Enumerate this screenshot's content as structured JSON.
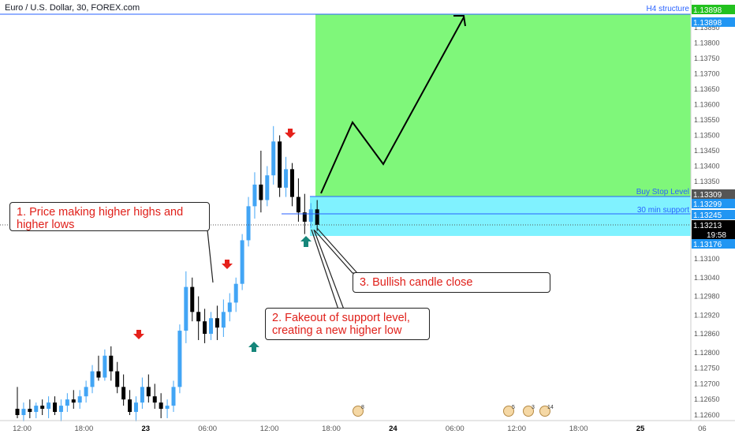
{
  "header": {
    "title": "Euro / U.S. Dollar, 30, FOREX.com"
  },
  "annotations": {
    "a1": "1. Price making higher highs and higher lows",
    "a2": "2. Fakeout of support level, creating a new higher low",
    "a3": "3. Bullish candle close"
  },
  "levels": {
    "h4_structure": "H4 structure",
    "buy_stop": "Buy Stop Level",
    "support_30": "30 min support"
  },
  "price_tags": {
    "top1": "1.13898",
    "top2": "1.13898",
    "buy_stop": "1.13309",
    "blue1": "1.13299",
    "support": "1.13245",
    "current": "1.13213",
    "countdown": "19:58",
    "bottom": "1.13176"
  },
  "event_badges": [
    "8",
    "5",
    "3",
    "14"
  ],
  "colors": {
    "bull": "#42a5f5",
    "bear": "#000000",
    "target_zone": "#7ff77a",
    "entry_zone": "#80f2ff",
    "arrow_down": "#e5211b",
    "arrow_up": "#16867a",
    "text_red": "#e0201a"
  },
  "chart_data": {
    "type": "candlestick",
    "title": "Euro / U.S. Dollar, 30, FOREX.com",
    "y_ticks": [
      1.126,
      1.1265,
      1.127,
      1.1275,
      1.128,
      1.1286,
      1.1292,
      1.1298,
      1.1304,
      1.131,
      1.1335,
      1.134,
      1.1345,
      1.135,
      1.1355,
      1.136,
      1.1365,
      1.137,
      1.1375,
      1.138,
      1.1385
    ],
    "y_tick_labels": [
      "1.12600",
      "1.12650",
      "1.12700",
      "1.12750",
      "1.12800",
      "1.12860",
      "1.12920",
      "1.12980",
      "1.13040",
      "1.13100",
      "1.13350",
      "1.13400",
      "1.13450",
      "1.13500",
      "1.13550",
      "1.13600",
      "1.13650",
      "1.13700",
      "1.13750",
      "1.13800",
      "1.13850"
    ],
    "x_ticks": [
      "12:00",
      "18:00",
      "23",
      "06:00",
      "12:00",
      "18:00",
      "24",
      "06:00",
      "12:00",
      "18:00",
      "25",
      "06"
    ],
    "x_tick_bold": [
      false,
      false,
      true,
      false,
      false,
      false,
      true,
      false,
      false,
      false,
      true,
      false
    ],
    "candles": [
      {
        "o": 1.1262,
        "h": 1.1269,
        "l": 1.1259,
        "c": 1.126
      },
      {
        "o": 1.126,
        "h": 1.1264,
        "l": 1.1258,
        "c": 1.1262
      },
      {
        "o": 1.1262,
        "h": 1.1265,
        "l": 1.1259,
        "c": 1.1261
      },
      {
        "o": 1.1261,
        "h": 1.1264,
        "l": 1.1259,
        "c": 1.1263
      },
      {
        "o": 1.1263,
        "h": 1.1265,
        "l": 1.126,
        "c": 1.1262
      },
      {
        "o": 1.1262,
        "h": 1.1266,
        "l": 1.1259,
        "c": 1.1264
      },
      {
        "o": 1.1264,
        "h": 1.1266,
        "l": 1.126,
        "c": 1.1261
      },
      {
        "o": 1.1261,
        "h": 1.1265,
        "l": 1.1258,
        "c": 1.1263
      },
      {
        "o": 1.1263,
        "h": 1.1267,
        "l": 1.1261,
        "c": 1.1265
      },
      {
        "o": 1.1265,
        "h": 1.1268,
        "l": 1.1262,
        "c": 1.1264
      },
      {
        "o": 1.1264,
        "h": 1.1268,
        "l": 1.1262,
        "c": 1.1266
      },
      {
        "o": 1.1266,
        "h": 1.1271,
        "l": 1.1264,
        "c": 1.1269
      },
      {
        "o": 1.1269,
        "h": 1.1276,
        "l": 1.1267,
        "c": 1.1274
      },
      {
        "o": 1.1274,
        "h": 1.1279,
        "l": 1.1271,
        "c": 1.1272
      },
      {
        "o": 1.1272,
        "h": 1.1281,
        "l": 1.1271,
        "c": 1.1279
      },
      {
        "o": 1.1279,
        "h": 1.1282,
        "l": 1.1271,
        "c": 1.1274
      },
      {
        "o": 1.1274,
        "h": 1.1277,
        "l": 1.1267,
        "c": 1.1269
      },
      {
        "o": 1.1269,
        "h": 1.1273,
        "l": 1.1263,
        "c": 1.1265
      },
      {
        "o": 1.1265,
        "h": 1.1268,
        "l": 1.126,
        "c": 1.1261
      },
      {
        "o": 1.1261,
        "h": 1.1266,
        "l": 1.1258,
        "c": 1.1264
      },
      {
        "o": 1.1264,
        "h": 1.1272,
        "l": 1.1262,
        "c": 1.1269
      },
      {
        "o": 1.1269,
        "h": 1.1273,
        "l": 1.1264,
        "c": 1.1266
      },
      {
        "o": 1.1266,
        "h": 1.127,
        "l": 1.1262,
        "c": 1.1264
      },
      {
        "o": 1.1264,
        "h": 1.1267,
        "l": 1.1259,
        "c": 1.1262
      },
      {
        "o": 1.1262,
        "h": 1.1265,
        "l": 1.1259,
        "c": 1.1263
      },
      {
        "o": 1.1263,
        "h": 1.1271,
        "l": 1.1261,
        "c": 1.1269
      },
      {
        "o": 1.1269,
        "h": 1.1289,
        "l": 1.1267,
        "c": 1.1287
      },
      {
        "o": 1.1287,
        "h": 1.1306,
        "l": 1.1283,
        "c": 1.1301
      },
      {
        "o": 1.1301,
        "h": 1.1304,
        "l": 1.129,
        "c": 1.1293
      },
      {
        "o": 1.1293,
        "h": 1.1298,
        "l": 1.1284,
        "c": 1.129
      },
      {
        "o": 1.129,
        "h": 1.1294,
        "l": 1.1283,
        "c": 1.1286
      },
      {
        "o": 1.1286,
        "h": 1.1293,
        "l": 1.1284,
        "c": 1.1291
      },
      {
        "o": 1.1291,
        "h": 1.1295,
        "l": 1.1284,
        "c": 1.1288
      },
      {
        "o": 1.1288,
        "h": 1.1297,
        "l": 1.1285,
        "c": 1.1293
      },
      {
        "o": 1.1293,
        "h": 1.1299,
        "l": 1.129,
        "c": 1.1296
      },
      {
        "o": 1.1296,
        "h": 1.1304,
        "l": 1.1293,
        "c": 1.1302
      },
      {
        "o": 1.1302,
        "h": 1.1318,
        "l": 1.13,
        "c": 1.1316
      },
      {
        "o": 1.1316,
        "h": 1.133,
        "l": 1.1314,
        "c": 1.1327
      },
      {
        "o": 1.1327,
        "h": 1.1338,
        "l": 1.1323,
        "c": 1.1334
      },
      {
        "o": 1.1334,
        "h": 1.1345,
        "l": 1.1325,
        "c": 1.1329
      },
      {
        "o": 1.1329,
        "h": 1.134,
        "l": 1.1327,
        "c": 1.1337
      },
      {
        "o": 1.1337,
        "h": 1.1353,
        "l": 1.1334,
        "c": 1.1348
      },
      {
        "o": 1.1348,
        "h": 1.135,
        "l": 1.133,
        "c": 1.1333
      },
      {
        "o": 1.1333,
        "h": 1.1343,
        "l": 1.133,
        "c": 1.1339
      },
      {
        "o": 1.1339,
        "h": 1.1341,
        "l": 1.1327,
        "c": 1.133
      },
      {
        "o": 1.133,
        "h": 1.1336,
        "l": 1.1322,
        "c": 1.1325
      },
      {
        "o": 1.1325,
        "h": 1.1331,
        "l": 1.1318,
        "c": 1.1322
      },
      {
        "o": 1.1322,
        "h": 1.1328,
        "l": 1.132,
        "c": 1.1326
      },
      {
        "o": 1.1326,
        "h": 1.1329,
        "l": 1.1319,
        "c": 1.1321
      }
    ],
    "horizontal_levels": [
      {
        "label": "H4 structure",
        "value": 1.13898
      },
      {
        "label": "Buy Stop Level",
        "value": 1.13309
      },
      {
        "label": "30 min support",
        "value": 1.13245
      }
    ],
    "target_zone": [
      1.13309,
      1.13898
    ],
    "entry_zone": [
      1.13176,
      1.13299
    ],
    "projection_path": [
      [
        1.13309,
        1.13309
      ],
      [
        1.1355,
        1.134
      ],
      [
        1.13898
      ]
    ],
    "grid": false
  }
}
